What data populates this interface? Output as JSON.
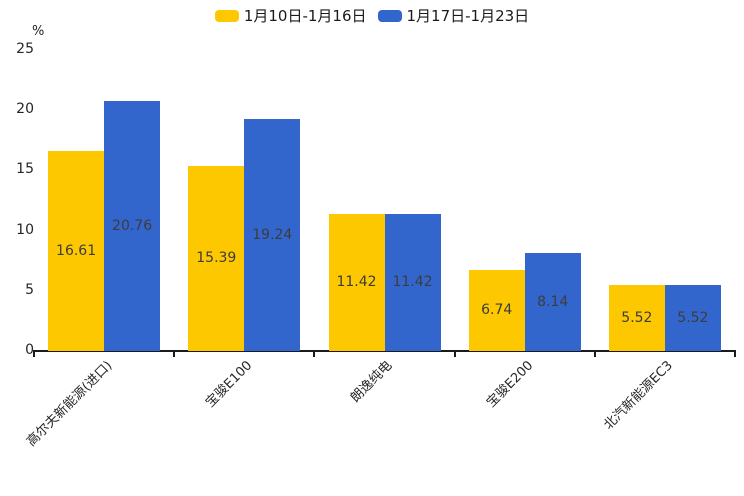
{
  "legend": {
    "items": [
      {
        "label": "1月10日-1月16日",
        "color": "#FDC800"
      },
      {
        "label": "1月17日-1月23日",
        "color": "#3366CC"
      }
    ]
  },
  "axis": {
    "unit_label": "%",
    "line_color": "#1a1a1a",
    "tick_label_color": "#262626",
    "value_label_color": "#3c3c3c"
  },
  "chart_data": {
    "type": "bar",
    "title": "",
    "categories": [
      "高尔夫新能源(进口)",
      "宝骏E100",
      "朗逸纯电",
      "宝骏E200",
      "北汽新能源EC3"
    ],
    "series": [
      {
        "name": "1月10日-1月16日",
        "color": "#FDC800",
        "values": [
          16.61,
          15.39,
          11.42,
          6.74,
          5.52
        ]
      },
      {
        "name": "1月17日-1月23日",
        "color": "#3366CC",
        "values": [
          20.76,
          19.24,
          11.42,
          8.14,
          5.52
        ]
      }
    ],
    "xlabel": "",
    "ylabel": "%",
    "ylim": [
      0,
      25
    ],
    "yticks": [
      0,
      5,
      10,
      15,
      20,
      25
    ],
    "grid": false,
    "legend_position": "top-center",
    "bar_value_labels": true,
    "value_label_decimals": 2
  }
}
